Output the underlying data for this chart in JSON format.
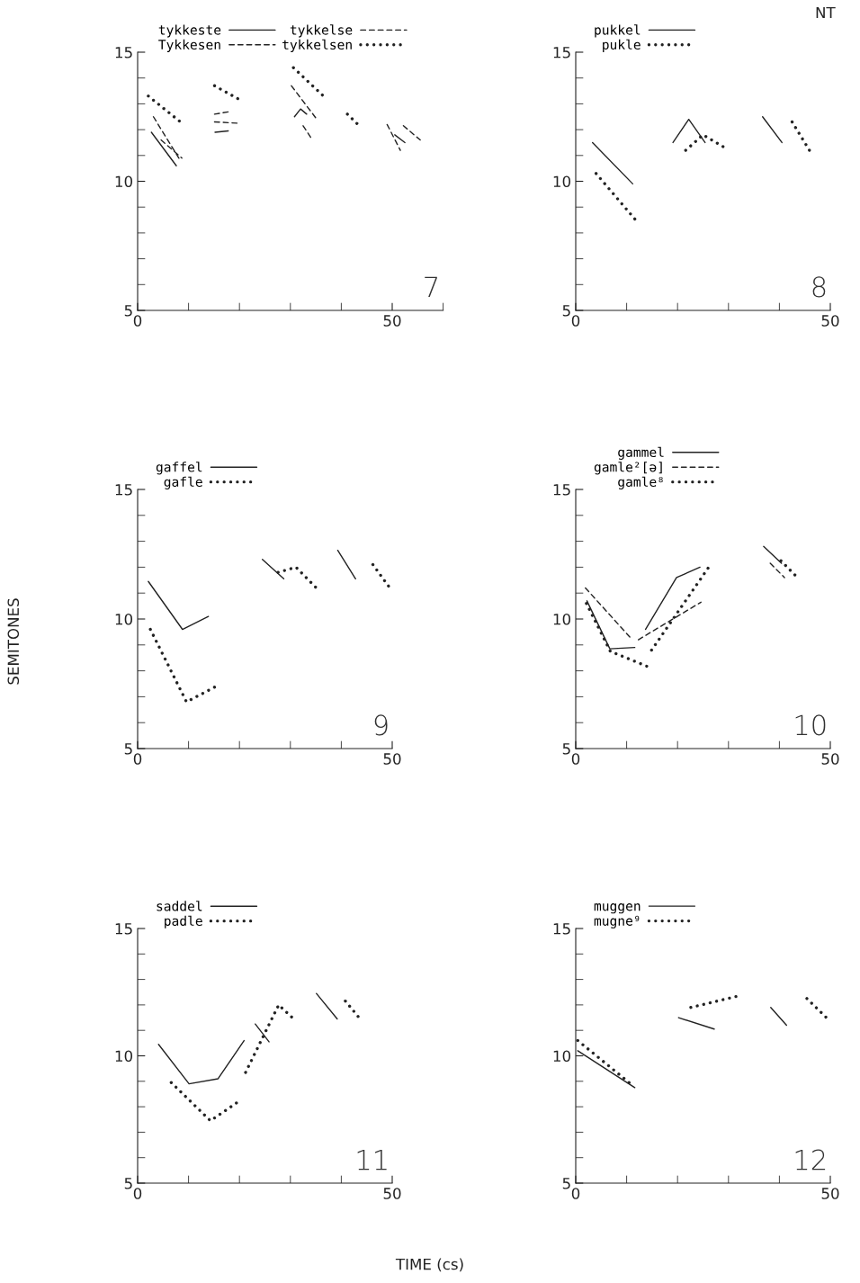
{
  "chart_data": [
    {
      "type": "line",
      "xlim": [
        0,
        60
      ],
      "ylim": [
        5,
        15
      ],
      "xticks": [
        0,
        {
          "value": 10,
          "label": null
        },
        {
          "value": 20,
          "label": null
        },
        {
          "value": 30,
          "label": null
        },
        {
          "value": 40,
          "label": null
        },
        50,
        {
          "value": 60,
          "label": null
        }
      ],
      "yticks": [
        5,
        {
          "value": 6,
          "label": null
        },
        {
          "value": 7,
          "label": null
        },
        {
          "value": 8,
          "label": null
        },
        {
          "value": 9,
          "label": null
        },
        10,
        {
          "value": 11,
          "label": null
        },
        {
          "value": 12,
          "label": null
        },
        {
          "value": 13,
          "label": null
        },
        {
          "value": 14,
          "label": null
        },
        15
      ],
      "legend": "top left",
      "annotations": [
        "7"
      ],
      "series": [
        {
          "name": "tykkeste",
          "color": "#222222",
          "line_style": "solid",
          "x": [
            2.7,
            7.6,
            null,
            15.2,
            17.8,
            null,
            30.8,
            32,
            33.2,
            null,
            50.5,
            52.5
          ],
          "values": [
            11.9,
            10.6,
            null,
            11.9,
            11.95,
            null,
            12.5,
            12.8,
            12.6,
            null,
            11.8,
            11.5
          ]
        },
        {
          "name": "Tykkesen",
          "color": "#222222",
          "line_style": "dashed",
          "x": [
            3.1,
            8.4,
            null,
            15.1,
            18.1,
            null,
            30.2,
            35.2,
            null,
            49,
            51.6
          ],
          "values": [
            12.5,
            10.8,
            null,
            12.6,
            12.7,
            null,
            13.7,
            12.4,
            null,
            12.2,
            11.2
          ]
        },
        {
          "name": "tykkelse",
          "color": "#222222",
          "line_style": "dashed",
          "x": [
            4.6,
            8.7,
            null,
            15.1,
            19.6,
            null,
            32.5,
            34,
            null,
            52.2,
            55.5
          ],
          "values": [
            11.6,
            10.9,
            null,
            12.3,
            12.25,
            null,
            12.15,
            11.7,
            null,
            12.15,
            11.6
          ]
        },
        {
          "name": "tykkelsen",
          "color": "#222222",
          "line_style": "dotted",
          "x": [
            2.1,
            8.4,
            null,
            15.1,
            20.6,
            null,
            30.6,
            36.5,
            null,
            41.2,
            43.8
          ],
          "values": [
            13.3,
            12.3,
            null,
            13.7,
            13.1,
            null,
            14.4,
            13.3,
            null,
            12.6,
            12.1
          ]
        }
      ]
    },
    {
      "type": "line",
      "xlim": [
        0,
        50
      ],
      "ylim": [
        5,
        15
      ],
      "xticks": [
        0,
        {
          "value": 10,
          "label": null
        },
        {
          "value": 20,
          "label": null
        },
        {
          "value": 30,
          "label": null
        },
        {
          "value": 40,
          "label": null
        },
        50
      ],
      "yticks": [
        5,
        {
          "value": 6,
          "label": null
        },
        {
          "value": 7,
          "label": null
        },
        {
          "value": 8,
          "label": null
        },
        {
          "value": 9,
          "label": null
        },
        10,
        {
          "value": 11,
          "label": null
        },
        {
          "value": 12,
          "label": null
        },
        {
          "value": 13,
          "label": null
        },
        {
          "value": 14,
          "label": null
        },
        15
      ],
      "legend": "top left",
      "annotations": [
        "8",
        "NT"
      ],
      "series": [
        {
          "name": "pukkel",
          "color": "#222222",
          "line_style": "solid",
          "x": [
            3.3,
            11.2,
            null,
            19.1,
            22.2,
            25.4,
            null,
            36.7,
            40.5
          ],
          "values": [
            11.5,
            9.9,
            null,
            11.5,
            12.4,
            11.5,
            null,
            12.5,
            11.5
          ]
        },
        {
          "name": "pukle",
          "color": "#222222",
          "line_style": "dotted",
          "x": [
            4,
            12.2,
            null,
            21.6,
            25,
            29.3,
            null,
            42.5,
            45.9
          ],
          "values": [
            10.3,
            8.4,
            null,
            11.2,
            11.8,
            11.3,
            null,
            12.3,
            11.2
          ]
        }
      ]
    },
    {
      "type": "line",
      "xlim": [
        0,
        50
      ],
      "ylim": [
        5,
        15
      ],
      "xticks": [
        0,
        {
          "value": 10,
          "label": null
        },
        {
          "value": 20,
          "label": null
        },
        {
          "value": 30,
          "label": null
        },
        {
          "value": 40,
          "label": null
        },
        50
      ],
      "yticks": [
        5,
        {
          "value": 6,
          "label": null
        },
        {
          "value": 7,
          "label": null
        },
        {
          "value": 8,
          "label": null
        },
        {
          "value": 9,
          "label": null
        },
        10,
        {
          "value": 11,
          "label": null
        },
        {
          "value": 12,
          "label": null
        },
        {
          "value": 13,
          "label": null
        },
        {
          "value": 14,
          "label": null
        },
        15
      ],
      "legend": "top left",
      "annotations": [
        "9"
      ],
      "ylabel": "SEMITONES",
      "series": [
        {
          "name": "gaffel",
          "color": "#222222",
          "line_style": "solid",
          "x": [
            2.1,
            8.8,
            13.9,
            null,
            24.5,
            28.7,
            null,
            39.3,
            42.8
          ],
          "values": [
            11.45,
            9.6,
            10.1,
            null,
            12.3,
            11.55,
            null,
            12.65,
            11.55
          ]
        },
        {
          "name": "gafle",
          "color": "#222222",
          "line_style": "dotted",
          "x": [
            2.5,
            9.6,
            15.4,
            null,
            27.6,
            31.1,
            35.6,
            null,
            46.2,
            49.9
          ],
          "values": [
            9.6,
            6.8,
            7.4,
            null,
            11.8,
            12.0,
            11.1,
            null,
            12.1,
            11.1
          ]
        }
      ]
    },
    {
      "type": "line",
      "xlim": [
        0,
        50
      ],
      "ylim": [
        5,
        15
      ],
      "xticks": [
        0,
        {
          "value": 10,
          "label": null
        },
        {
          "value": 20,
          "label": null
        },
        {
          "value": 30,
          "label": null
        },
        {
          "value": 40,
          "label": null
        },
        50
      ],
      "yticks": [
        5,
        {
          "value": 6,
          "label": null
        },
        {
          "value": 7,
          "label": null
        },
        {
          "value": 8,
          "label": null
        },
        {
          "value": 9,
          "label": null
        },
        10,
        {
          "value": 11,
          "label": null
        },
        {
          "value": 12,
          "label": null
        },
        {
          "value": 13,
          "label": null
        },
        {
          "value": 14,
          "label": null
        },
        15
      ],
      "legend": "top left",
      "annotations": [
        "10"
      ],
      "series": [
        {
          "name": "gammel",
          "color": "#222222",
          "line_style": "solid",
          "x": [
            2.2,
            6.7,
            11.6,
            null,
            13.7,
            19.8,
            24.4,
            null,
            36.9,
            40.4
          ],
          "values": [
            10.7,
            8.85,
            8.9,
            null,
            9.6,
            11.6,
            12.0,
            null,
            12.8,
            12.15
          ]
        },
        {
          "name": "gamle²[ə]",
          "color": "#222222",
          "line_style": "dashed",
          "x": [
            1.9,
            11.1,
            null,
            12.3,
            24.6,
            null,
            38.2,
            41
          ],
          "values": [
            11.2,
            9.2,
            null,
            9.2,
            10.65,
            null,
            12.15,
            11.6
          ]
        },
        {
          "name": "gamle⁸",
          "color": "#222222",
          "line_style": "dotted",
          "x": [
            2.1,
            6.8,
            14.3,
            null,
            14.9,
            26.3,
            null,
            40.3,
            43.8
          ],
          "values": [
            10.6,
            8.75,
            8.15,
            null,
            8.8,
            12.05,
            null,
            12.25,
            11.55
          ]
        }
      ]
    },
    {
      "type": "line",
      "xlim": [
        0,
        50
      ],
      "ylim": [
        5,
        15
      ],
      "xticks": [
        0,
        {
          "value": 10,
          "label": null
        },
        {
          "value": 20,
          "label": null
        },
        {
          "value": 30,
          "label": null
        },
        {
          "value": 40,
          "label": null
        },
        50
      ],
      "yticks": [
        5,
        {
          "value": 6,
          "label": null
        },
        {
          "value": 7,
          "label": null
        },
        {
          "value": 8,
          "label": null
        },
        {
          "value": 9,
          "label": null
        },
        10,
        {
          "value": 11,
          "label": null
        },
        {
          "value": 12,
          "label": null
        },
        {
          "value": 13,
          "label": null
        },
        {
          "value": 14,
          "label": null
        },
        15
      ],
      "legend": "top left",
      "annotations": [
        "11"
      ],
      "xlabel": "TIME (cs)",
      "series": [
        {
          "name": "saddel",
          "color": "#222222",
          "line_style": "solid",
          "x": [
            4.1,
            10.1,
            15.8,
            20.9,
            null,
            23.1,
            25.8,
            null,
            35.1,
            39.2
          ],
          "values": [
            10.45,
            8.9,
            9.1,
            10.6,
            null,
            11.25,
            10.55,
            null,
            12.45,
            11.45
          ]
        },
        {
          "name": "padle",
          "color": "#222222",
          "line_style": "dotted",
          "x": [
            6.6,
            14.3,
            19.8,
            null,
            21.2,
            27.7,
            30.9,
            null,
            40.8,
            43.9
          ],
          "values": [
            8.95,
            7.45,
            8.2,
            null,
            9.35,
            12.0,
            11.4,
            null,
            12.15,
            11.4
          ]
        }
      ]
    },
    {
      "type": "line",
      "xlim": [
        0,
        50
      ],
      "ylim": [
        5,
        15
      ],
      "xticks": [
        0,
        {
          "value": 10,
          "label": null
        },
        {
          "value": 20,
          "label": null
        },
        {
          "value": 30,
          "label": null
        },
        {
          "value": 40,
          "label": null
        },
        50
      ],
      "yticks": [
        5,
        {
          "value": 6,
          "label": null
        },
        {
          "value": 7,
          "label": null
        },
        {
          "value": 8,
          "label": null
        },
        {
          "value": 9,
          "label": null
        },
        10,
        {
          "value": 11,
          "label": null
        },
        {
          "value": 12,
          "label": null
        },
        {
          "value": 13,
          "label": null
        },
        {
          "value": 14,
          "label": null
        },
        15
      ],
      "legend": "top left",
      "annotations": [
        "12"
      ],
      "series": [
        {
          "name": "muggen",
          "color": "#222222",
          "line_style": "solid",
          "x": [
            0.4,
            11.6,
            null,
            20.2,
            27.2,
            null,
            38.3,
            41.4
          ],
          "values": [
            10.2,
            8.75,
            null,
            11.5,
            11.05,
            null,
            11.9,
            11.2
          ]
        },
        {
          "name": "mugne⁹",
          "color": "#222222",
          "line_style": "dotted",
          "x": [
            0.4,
            11.4,
            null,
            22.6,
            31.9,
            null,
            45.4,
            50
          ],
          "values": [
            10.6,
            8.8,
            null,
            11.9,
            12.35,
            null,
            12.25,
            11.35
          ]
        }
      ]
    }
  ]
}
